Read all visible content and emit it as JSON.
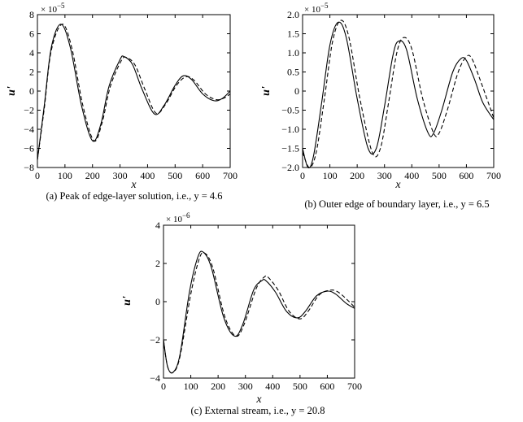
{
  "chart_data": [
    {
      "type": "line",
      "caption": "(a) Peak of edge-layer solution, i.e., y = 4.6",
      "xlabel": "x",
      "ylabel": "u'",
      "multiplier": "× 10",
      "multiplier_exp": "−5",
      "xlim": [
        0,
        700
      ],
      "ylim": [
        -8,
        8
      ],
      "xticks": [
        0,
        100,
        200,
        300,
        400,
        500,
        600,
        700
      ],
      "yticks": [
        -8,
        -6,
        -4,
        -2,
        0,
        2,
        4,
        6,
        8
      ],
      "grid": false,
      "series": [
        {
          "style": "solid",
          "x": [
            0,
            25,
            50,
            85,
            120,
            160,
            200,
            230,
            260,
            300,
            315,
            345,
            380,
            425,
            460,
            500,
            530,
            560,
            600,
            640,
            670,
            700
          ],
          "y": [
            -7.2,
            -1.5,
            4.5,
            7.0,
            4.5,
            -1.5,
            -5.2,
            -3.5,
            0.5,
            3.3,
            3.6,
            2.8,
            0.2,
            -2.4,
            -1.5,
            0.6,
            1.6,
            1.2,
            -0.3,
            -1.0,
            -0.8,
            0.0
          ]
        },
        {
          "style": "dashed",
          "x": [
            0,
            25,
            50,
            90,
            125,
            165,
            205,
            235,
            265,
            305,
            325,
            355,
            390,
            430,
            465,
            505,
            540,
            570,
            610,
            650,
            680,
            700
          ],
          "y": [
            -7.2,
            -1.8,
            4.2,
            7.0,
            4.5,
            -1.5,
            -5.2,
            -3.3,
            0.5,
            3.2,
            3.5,
            2.7,
            0.2,
            -2.3,
            -1.4,
            0.6,
            1.5,
            1.1,
            -0.3,
            -0.9,
            -0.7,
            -0.3
          ]
        }
      ]
    },
    {
      "type": "line",
      "caption": "(b) Outer edge of boundary layer, i.e., y = 6.5",
      "xlabel": "x",
      "ylabel": "u'",
      "multiplier": "× 10",
      "multiplier_exp": "−5",
      "xlim": [
        0,
        700
      ],
      "ylim": [
        -2.0,
        2.0
      ],
      "xticks": [
        0,
        100,
        200,
        300,
        400,
        500,
        600,
        700
      ],
      "yticks": [
        -2.0,
        -1.5,
        -1.0,
        -0.5,
        0,
        0.5,
        1.0,
        1.5,
        2.0
      ],
      "ytick_labels": [
        "−2.0",
        "−1.5",
        "−1.0",
        "−0.5",
        "0",
        "0.5",
        "1.0",
        "1.5",
        "2.0"
      ],
      "grid": false,
      "series": [
        {
          "style": "solid",
          "x": [
            0,
            20,
            40,
            70,
            100,
            130,
            160,
            200,
            240,
            270,
            300,
            330,
            350,
            380,
            420,
            460,
            480,
            510,
            550,
            580,
            600,
            630,
            660,
            700
          ],
          "y": [
            -1.5,
            -2.0,
            -1.7,
            -0.3,
            1.2,
            1.8,
            1.4,
            -0.2,
            -1.5,
            -1.5,
            -0.4,
            0.9,
            1.3,
            1.1,
            -0.2,
            -1.1,
            -1.1,
            -0.5,
            0.5,
            0.85,
            0.8,
            0.3,
            -0.3,
            -0.75
          ]
        },
        {
          "style": "dashed",
          "x": [
            0,
            25,
            50,
            80,
            110,
            140,
            170,
            210,
            255,
            285,
            315,
            345,
            370,
            400,
            440,
            480,
            500,
            530,
            570,
            600,
            620,
            650,
            680,
            700
          ],
          "y": [
            -1.6,
            -2.0,
            -1.6,
            -0.2,
            1.3,
            1.85,
            1.4,
            -0.2,
            -1.6,
            -1.5,
            -0.3,
            1.0,
            1.4,
            1.1,
            -0.2,
            -1.1,
            -1.1,
            -0.5,
            0.5,
            0.9,
            0.85,
            0.3,
            -0.3,
            -0.7
          ]
        }
      ]
    },
    {
      "type": "line",
      "caption": "(c) External stream, i.e., y = 20.8",
      "xlabel": "x",
      "ylabel": "u'",
      "multiplier": "× 10",
      "multiplier_exp": "−6",
      "xlim": [
        0,
        700
      ],
      "ylim": [
        -4,
        4
      ],
      "xticks": [
        0,
        100,
        200,
        300,
        400,
        500,
        600,
        700
      ],
      "yticks": [
        -4,
        -2,
        0,
        2,
        4
      ],
      "ytick_labels": [
        "−4",
        "−2",
        "0",
        "2",
        "4"
      ],
      "grid": false,
      "series": [
        {
          "style": "solid",
          "x": [
            0,
            15,
            35,
            60,
            95,
            125,
            145,
            175,
            220,
            260,
            290,
            330,
            360,
            375,
            410,
            450,
            490,
            520,
            560,
            600,
            630,
            670,
            700
          ],
          "y": [
            -2.0,
            -3.4,
            -3.7,
            -2.8,
            0.5,
            2.3,
            2.6,
            1.8,
            -0.8,
            -1.8,
            -1.2,
            0.6,
            1.1,
            1.1,
            0.5,
            -0.5,
            -0.85,
            -0.5,
            0.3,
            0.55,
            0.4,
            -0.1,
            -0.35
          ]
        },
        {
          "style": "dashed",
          "x": [
            0,
            15,
            35,
            60,
            100,
            130,
            150,
            180,
            225,
            265,
            295,
            340,
            370,
            385,
            420,
            460,
            500,
            530,
            570,
            610,
            640,
            680,
            700
          ],
          "y": [
            -2.0,
            -3.4,
            -3.7,
            -2.9,
            0.4,
            2.2,
            2.55,
            1.8,
            -0.8,
            -1.8,
            -1.2,
            0.7,
            1.3,
            1.25,
            0.6,
            -0.5,
            -0.9,
            -0.5,
            0.35,
            0.6,
            0.5,
            0.0,
            -0.3
          ]
        }
      ]
    }
  ]
}
